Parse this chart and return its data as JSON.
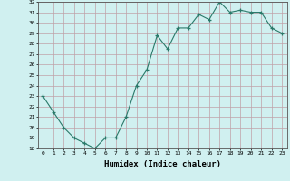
{
  "x": [
    0,
    1,
    2,
    3,
    4,
    5,
    6,
    7,
    8,
    9,
    10,
    11,
    12,
    13,
    14,
    15,
    16,
    17,
    18,
    19,
    20,
    21,
    22,
    23
  ],
  "y": [
    23.0,
    21.5,
    20.0,
    19.0,
    18.5,
    18.0,
    19.0,
    19.0,
    21.0,
    24.0,
    25.5,
    28.8,
    27.5,
    29.5,
    29.5,
    30.8,
    30.3,
    32.0,
    31.0,
    31.2,
    31.0,
    31.0,
    29.5,
    29.0
  ],
  "xlabel": "Humidex (Indice chaleur)",
  "ylabel": "",
  "ylim": [
    18,
    32
  ],
  "xlim": [
    -0.5,
    23.5
  ],
  "yticks": [
    18,
    19,
    20,
    21,
    22,
    23,
    24,
    25,
    26,
    27,
    28,
    29,
    30,
    31,
    32
  ],
  "xticks": [
    0,
    1,
    2,
    3,
    4,
    5,
    6,
    7,
    8,
    9,
    10,
    11,
    12,
    13,
    14,
    15,
    16,
    17,
    18,
    19,
    20,
    21,
    22,
    23
  ],
  "line_color": "#2a7a6a",
  "marker": "+",
  "bg_color": "#d0f0f0",
  "grid_color": "#c0a0a8",
  "font_color": "#000000"
}
